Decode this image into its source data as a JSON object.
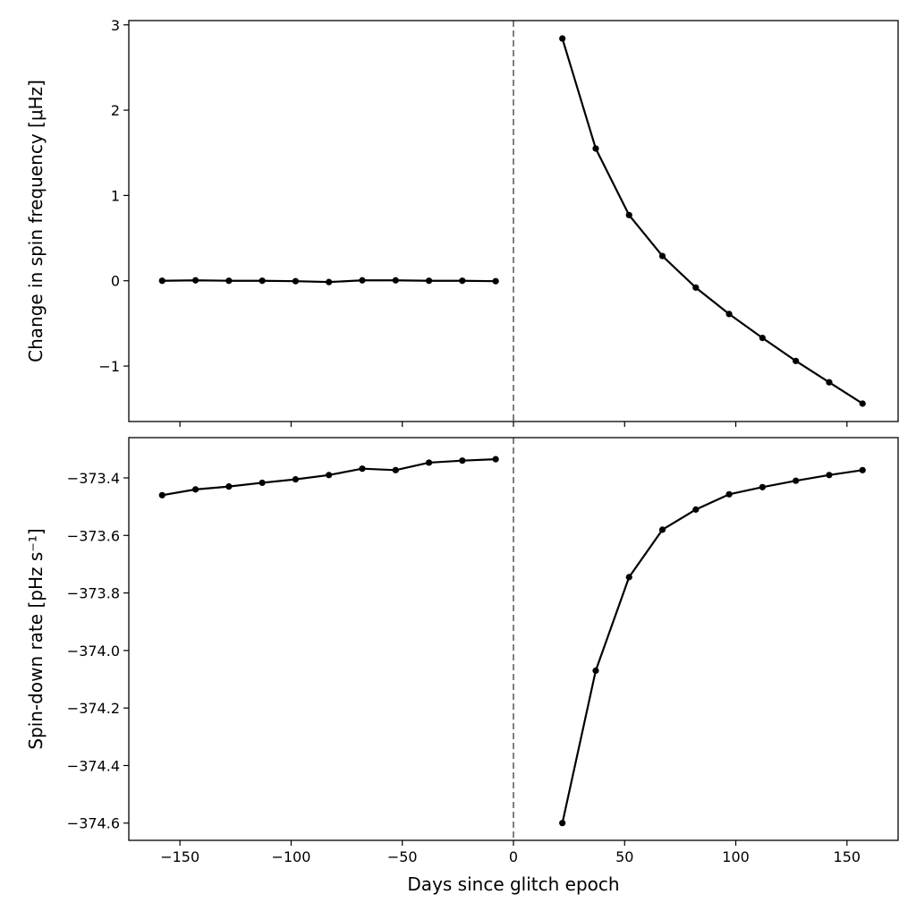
{
  "chart_data": {
    "type": "line",
    "xlabel": "Days since glitch epoch",
    "xlim": [
      -173,
      173
    ],
    "xticks": [
      -150,
      -100,
      -50,
      0,
      50,
      100,
      150
    ],
    "xtick_labels": [
      "−150",
      "−100",
      "−50",
      "0",
      "50",
      "100",
      "150"
    ],
    "line_color": "#000000",
    "glitch_line": {
      "x": 0,
      "style": "dashed",
      "color": "#808080"
    },
    "grid": false,
    "panels": [
      {
        "ylabel": "Change in spin frequency [μHz]",
        "ylim": [
          -1.65,
          3.05
        ],
        "yticks": [
          -1,
          0,
          1,
          2,
          3
        ],
        "ytick_labels": [
          "−1",
          "0",
          "1",
          "2",
          "3"
        ],
        "series": [
          {
            "x": [
              -158,
              -143,
              -128,
              -113,
              -98,
              -83,
              -68,
              -53,
              -38,
              -23,
              -8
            ],
            "y": [
              0.0,
              0.005,
              0.0,
              0.0,
              -0.005,
              -0.015,
              0.005,
              0.005,
              0.0,
              0.0,
              -0.005
            ]
          },
          {
            "x": [
              22,
              37,
              52,
              67,
              82,
              97,
              112,
              127,
              142,
              157
            ],
            "y": [
              2.84,
              1.55,
              0.77,
              0.29,
              -0.08,
              -0.39,
              -0.67,
              -0.94,
              -1.19,
              -1.44
            ]
          }
        ]
      },
      {
        "ylabel": "Spin-down rate [pHz s⁻¹]",
        "ylim": [
          -374.66,
          -373.26
        ],
        "yticks": [
          -374.6,
          -374.4,
          -374.2,
          -374.0,
          -373.8,
          -373.6,
          -373.4
        ],
        "ytick_labels": [
          "−374.6",
          "−374.4",
          "−374.2",
          "−374.0",
          "−373.8",
          "−373.6",
          "−373.4"
        ],
        "series": [
          {
            "x": [
              -158,
              -143,
              -128,
              -113,
              -98,
              -83,
              -68,
              -53,
              -38,
              -23,
              -8
            ],
            "y": [
              -373.46,
              -373.44,
              -373.43,
              -373.417,
              -373.405,
              -373.39,
              -373.368,
              -373.373,
              -373.347,
              -373.34,
              -373.335
            ]
          },
          {
            "x": [
              22,
              37,
              52,
              67,
              82,
              97,
              112,
              127,
              142,
              157
            ],
            "y": [
              -374.6,
              -374.07,
              -373.745,
              -373.58,
              -373.51,
              -373.457,
              -373.432,
              -373.41,
              -373.39,
              -373.373
            ]
          }
        ]
      }
    ]
  }
}
